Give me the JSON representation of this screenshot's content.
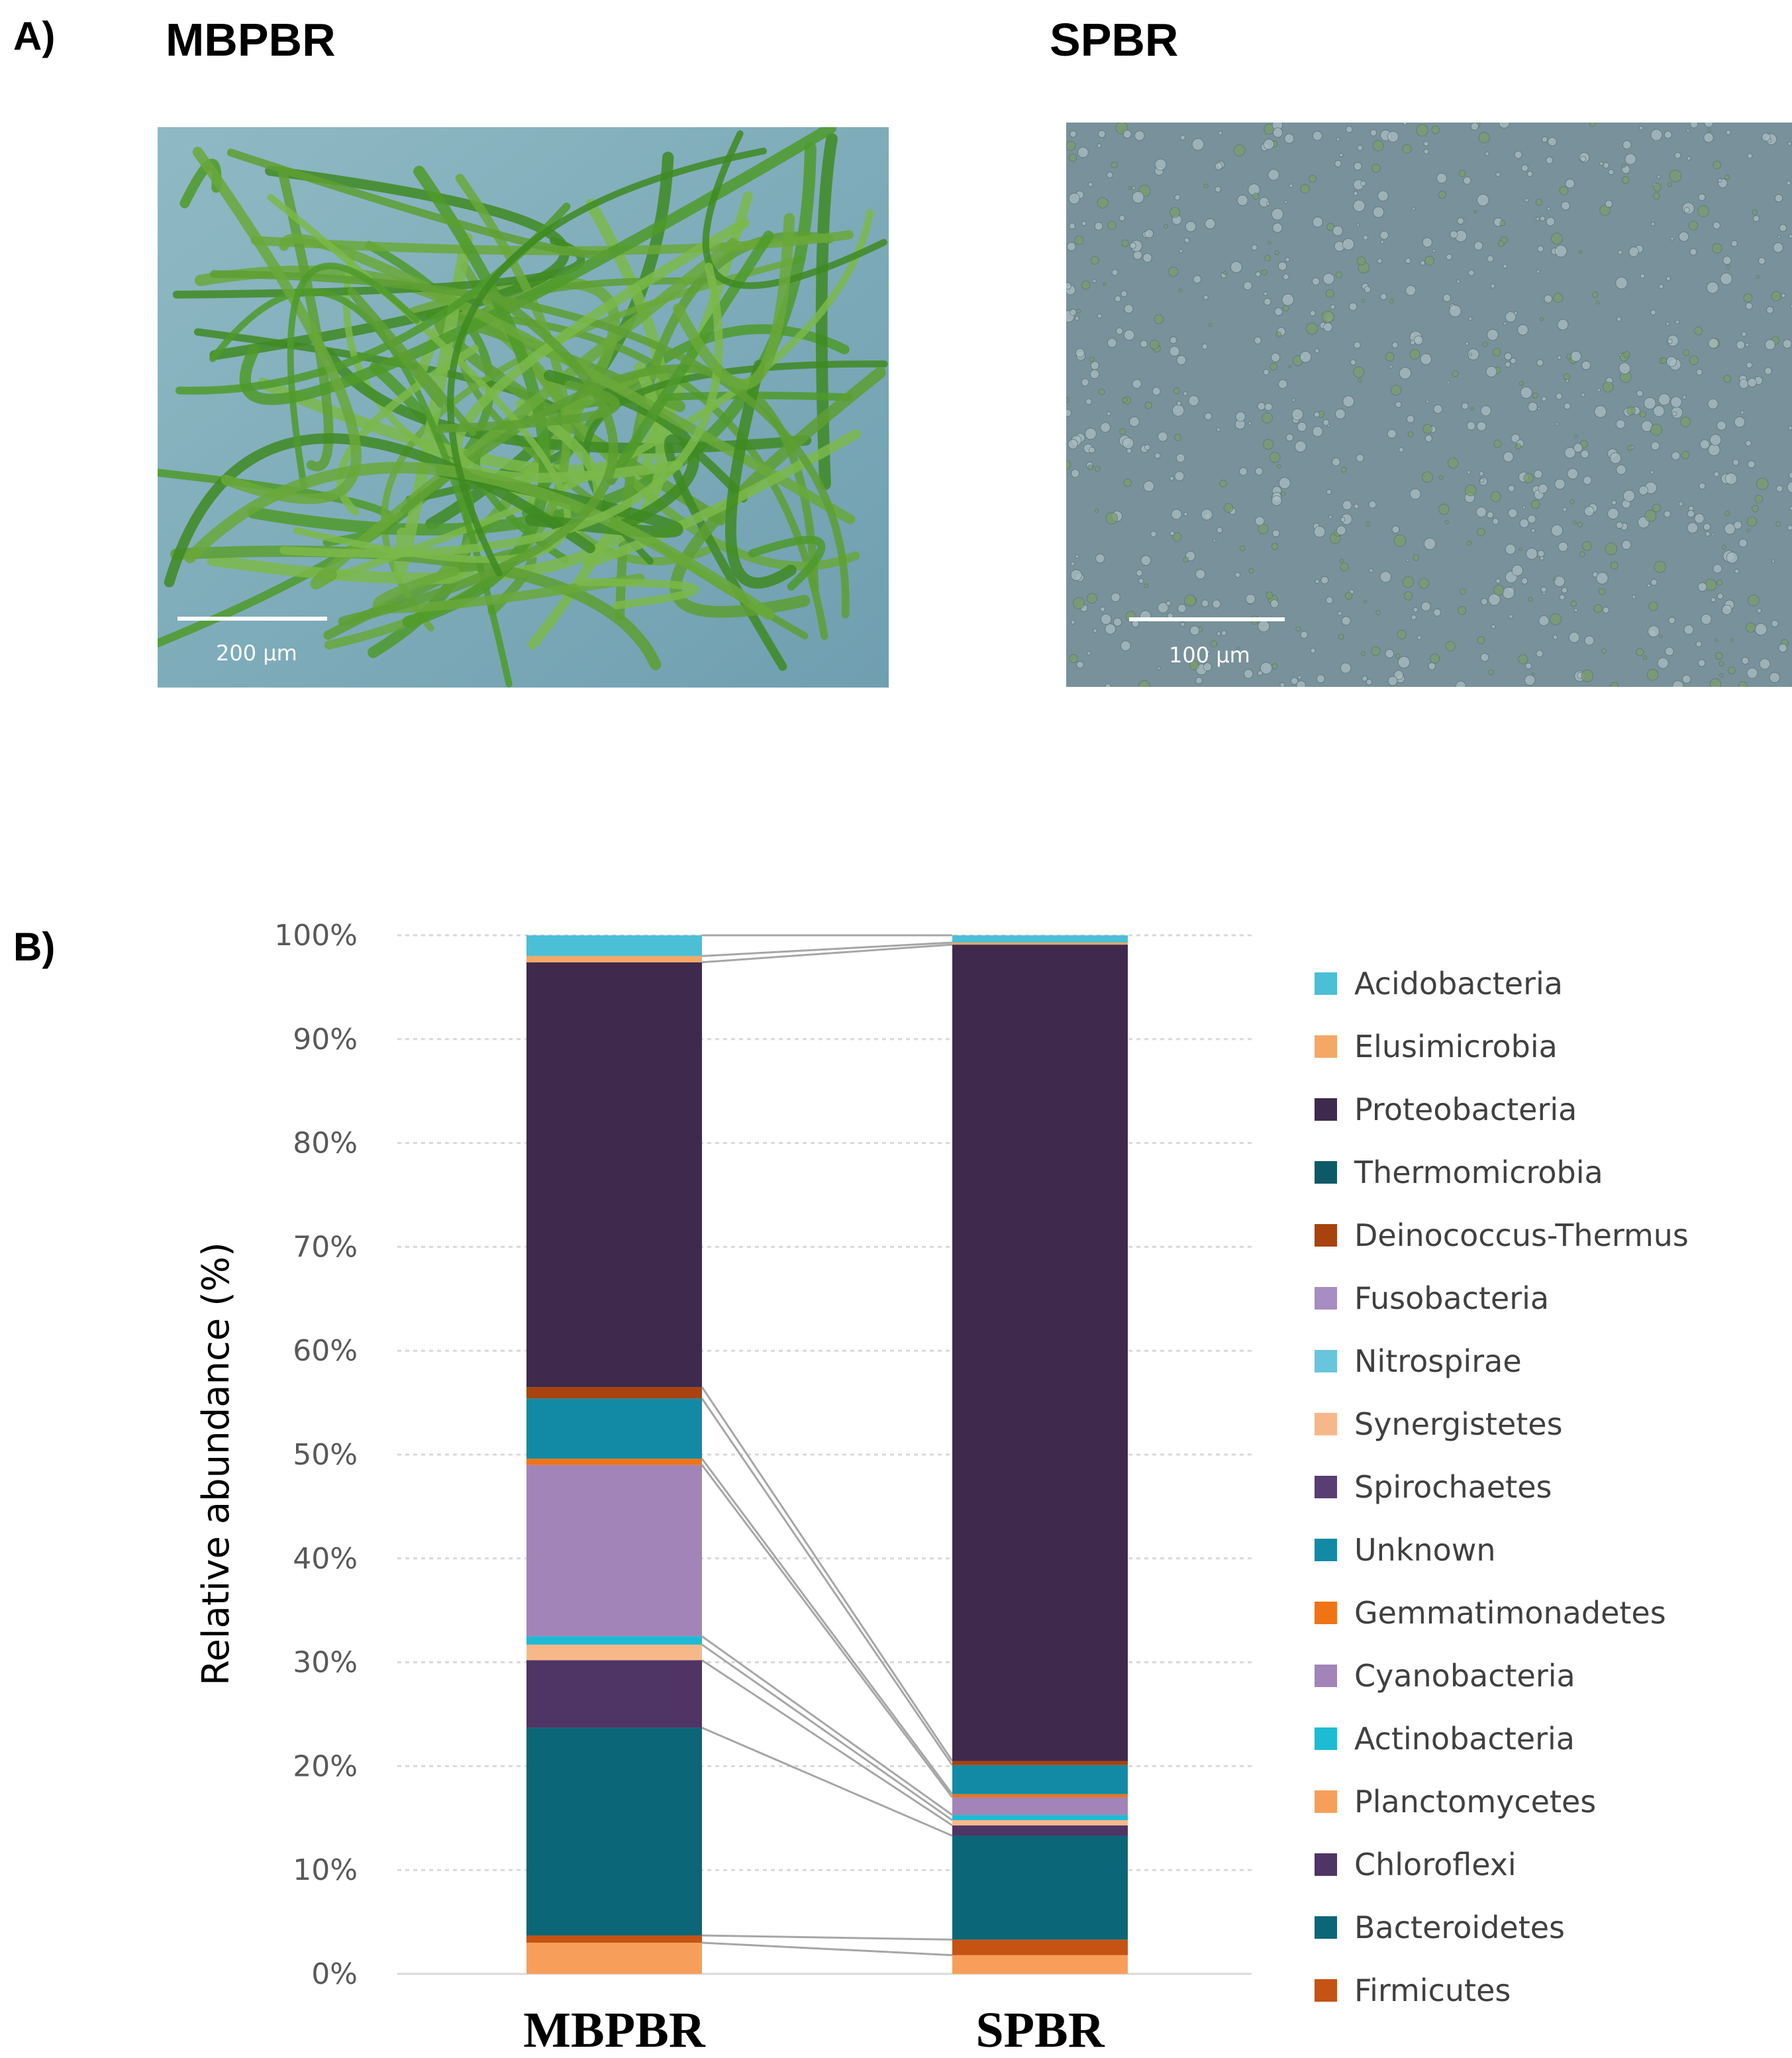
{
  "panel_a": {
    "label": "A)",
    "left_title": "MBPBR",
    "right_title": "SPBR",
    "left_scale": "200 μm",
    "right_scale": "100 μm"
  },
  "panel_b": {
    "label": "B)"
  },
  "colors": {
    "Acidobacteria": "#4bbfd6",
    "Elusimicrobia": "#f5a766",
    "Proteobacteria": "#3f2a4d",
    "Thermomicrobia": "#0d5a66",
    "Deinococcus-Thermus": "#a8420f",
    "Fusobacteria": "#a88dc2",
    "Nitrospirae": "#67c5dc",
    "Synergistetes": "#f7b889",
    "Spirochaetes": "#5a3d73",
    "Unknown": "#128aa5",
    "Gemmatimonadetes": "#f07316",
    "Cyanobacteria": "#a284b8",
    "Actinobacteria": "#1ebbd4",
    "Planctomycetes": "#f79f5a",
    "Chloroflexi": "#4f3466",
    "Bacteroidetes": "#0b6677",
    "Firmicutes": "#c55313",
    "connector": "#a6a6a6",
    "grid": "#d9d9d9"
  },
  "chart_data": {
    "type": "bar",
    "stacked": true,
    "ylabel": "Relative abundance (%)",
    "ylim": [
      0,
      100
    ],
    "yticks": [
      "0%",
      "10%",
      "20%",
      "30%",
      "40%",
      "50%",
      "60%",
      "70%",
      "80%",
      "90%",
      "100%"
    ],
    "grid": "horizontal dashed",
    "legend_position": "right",
    "categories": [
      "MBPBR",
      "SPBR"
    ],
    "series": [
      {
        "name": "Planctomycetes",
        "values": [
          3.0,
          1.8
        ]
      },
      {
        "name": "Firmicutes",
        "values": [
          0.7,
          1.5
        ]
      },
      {
        "name": "Bacteroidetes",
        "values": [
          20.0,
          10.0
        ]
      },
      {
        "name": "Chloroflexi",
        "values": [
          6.5,
          1.0
        ]
      },
      {
        "name": "Synergistetes",
        "values": [
          1.5,
          0.5
        ]
      },
      {
        "name": "Actinobacteria",
        "values": [
          0.8,
          0.5
        ]
      },
      {
        "name": "Cyanobacteria",
        "values": [
          16.5,
          1.7
        ]
      },
      {
        "name": "Gemmatimonadetes",
        "values": [
          0.6,
          0.3
        ]
      },
      {
        "name": "Unknown",
        "values": [
          5.8,
          2.8
        ]
      },
      {
        "name": "Deinococcus-Thermus",
        "values": [
          1.1,
          0.4
        ]
      },
      {
        "name": "Proteobacteria",
        "values": [
          40.9,
          78.6
        ]
      },
      {
        "name": "Elusimicrobia",
        "values": [
          0.6,
          0.2
        ]
      },
      {
        "name": "Acidobacteria",
        "values": [
          2.0,
          0.7
        ]
      }
    ],
    "legend": [
      "Acidobacteria",
      "Elusimicrobia",
      "Proteobacteria",
      "Thermomicrobia",
      "Deinococcus-Thermus",
      "Fusobacteria",
      "Nitrospirae",
      "Synergistetes",
      "Spirochaetes",
      "Unknown",
      "Gemmatimonadetes",
      "Cyanobacteria",
      "Actinobacteria",
      "Planctomycetes",
      "Chloroflexi",
      "Bacteroidetes",
      "Firmicutes"
    ]
  }
}
